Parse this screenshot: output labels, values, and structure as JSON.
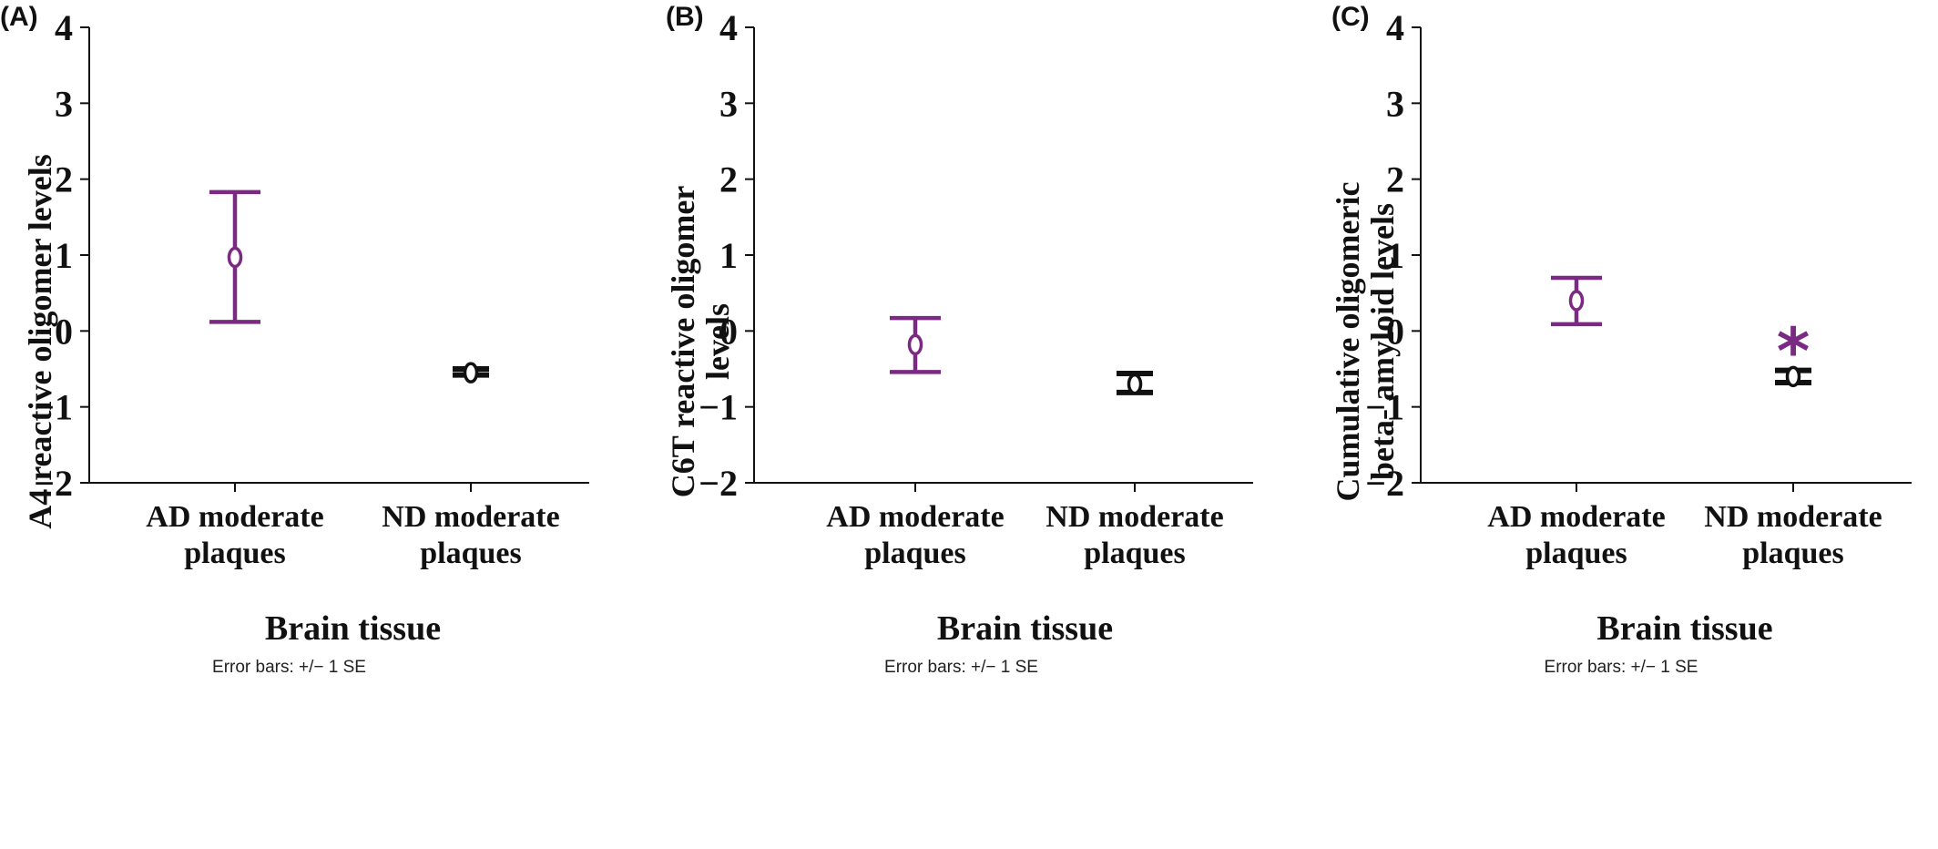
{
  "colors": {
    "ad": "#7b2a83",
    "nd": "#111111",
    "axis": "#111111"
  },
  "chart_data": [
    {
      "type": "scatter",
      "panel_label": "(A)",
      "ylabel_lines": [
        "A4 reactive oligomer levels"
      ],
      "xlabel": "Brain tissue",
      "footnote": "Error bars: +/− 1 SE",
      "ylim": [
        -2,
        4
      ],
      "yticks": [
        4,
        3,
        2,
        1,
        0,
        -1,
        -2
      ],
      "ytick_labels": [
        "4",
        "3",
        "2",
        "1",
        "0",
        "−1",
        "−2"
      ],
      "categories": [
        {
          "lines": [
            "AD moderate",
            "plaques"
          ]
        },
        {
          "lines": [
            "ND moderate",
            "plaques"
          ]
        }
      ],
      "points": [
        {
          "category": 0,
          "mean": 0.97,
          "err_low": 0.12,
          "err_high": 1.83,
          "color": "#7b2a83"
        },
        {
          "category": 1,
          "mean": -0.55,
          "err_low": -0.58,
          "err_high": -0.5,
          "color": "#111111"
        }
      ],
      "annotations": []
    },
    {
      "type": "scatter",
      "panel_label": "(B)",
      "ylabel_lines": [
        "C6T reactive oligomer",
        "levels"
      ],
      "xlabel": "Brain tissue",
      "footnote": "Error bars: +/− 1 SE",
      "ylim": [
        -2,
        4
      ],
      "yticks": [
        4,
        3,
        2,
        1,
        0,
        -1,
        -2
      ],
      "ytick_labels": [
        "4",
        "3",
        "2",
        "1",
        "0",
        "−1",
        "−2"
      ],
      "categories": [
        {
          "lines": [
            "AD moderate",
            "plaques"
          ]
        },
        {
          "lines": [
            "ND moderate",
            "plaques"
          ]
        }
      ],
      "points": [
        {
          "category": 0,
          "mean": -0.18,
          "err_low": -0.54,
          "err_high": 0.17,
          "color": "#7b2a83"
        },
        {
          "category": 1,
          "mean": -0.7,
          "err_low": -0.81,
          "err_high": -0.56,
          "color": "#111111"
        }
      ],
      "annotations": []
    },
    {
      "type": "scatter",
      "panel_label": "(C)",
      "ylabel_lines": [
        "Cumulative  oligomeric",
        "beta- amyloid levels"
      ],
      "xlabel": "Brain tissue",
      "footnote": "Error bars: +/− 1 SE",
      "ylim": [
        -2,
        4
      ],
      "yticks": [
        4,
        3,
        2,
        1,
        0,
        -1,
        -2
      ],
      "ytick_labels": [
        "4",
        "3",
        "2",
        "1",
        "0",
        "−1",
        "−2"
      ],
      "categories": [
        {
          "lines": [
            "AD moderate",
            "plaques"
          ]
        },
        {
          "lines": [
            "ND moderate",
            "plaques"
          ]
        }
      ],
      "points": [
        {
          "category": 0,
          "mean": 0.4,
          "err_low": 0.09,
          "err_high": 0.7,
          "color": "#7b2a83"
        },
        {
          "category": 1,
          "mean": -0.6,
          "err_low": -0.68,
          "err_high": -0.52,
          "color": "#111111"
        }
      ],
      "annotations": [
        {
          "category": 1,
          "value": -0.15,
          "text": "*",
          "color": "#7b2a83"
        }
      ]
    }
  ]
}
